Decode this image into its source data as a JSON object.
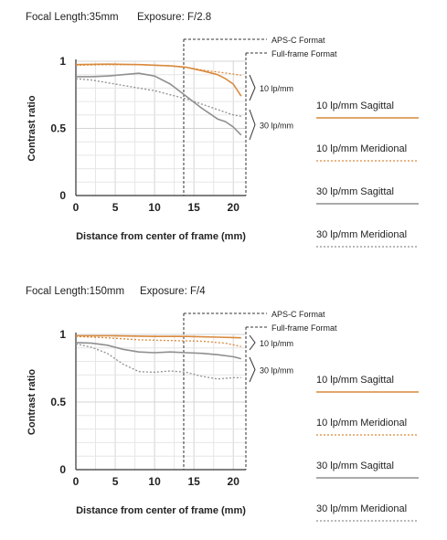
{
  "chart_data": [
    {
      "type": "line",
      "header": {
        "focal_length": "Focal Length:35mm",
        "exposure": "Exposure: F/2.8"
      },
      "xlabel": "Distance from center of frame (mm)",
      "ylabel": "Contrast ratio",
      "xlim": [
        0,
        21.6
      ],
      "ylim": [
        0,
        1
      ],
      "x_ticks": [
        "0",
        "5",
        "10",
        "15",
        "20"
      ],
      "y_ticks": [
        "0",
        "0.5",
        "1"
      ],
      "format_markers": [
        {
          "label": "APS-C Format",
          "x": 13.7
        },
        {
          "label": "Full-frame Format",
          "x": 21.6
        }
      ],
      "bracket_labels": [
        "10 lp/mm",
        "30 lp/mm"
      ],
      "series": [
        {
          "name": "10 lp/mm Sagittal",
          "color": "#d9893a",
          "style": "solid",
          "x": [
            0,
            4,
            8,
            12,
            14,
            16,
            18,
            19,
            20,
            21
          ],
          "y": [
            0.975,
            0.978,
            0.975,
            0.965,
            0.955,
            0.93,
            0.9,
            0.87,
            0.83,
            0.74
          ]
        },
        {
          "name": "10 lp/mm Meridional",
          "color": "#d9893a",
          "style": "dotted",
          "x": [
            0,
            4,
            8,
            12,
            14,
            16,
            18,
            20,
            21
          ],
          "y": [
            0.97,
            0.975,
            0.975,
            0.965,
            0.955,
            0.935,
            0.92,
            0.905,
            0.895
          ]
        },
        {
          "name": "30 lp/mm Sagittal",
          "color": "#8f8f8f",
          "style": "solid",
          "x": [
            0,
            2,
            4,
            6,
            8,
            10,
            12,
            14,
            16,
            17,
            18,
            19,
            20,
            21
          ],
          "y": [
            0.885,
            0.885,
            0.89,
            0.9,
            0.91,
            0.89,
            0.83,
            0.74,
            0.65,
            0.61,
            0.57,
            0.55,
            0.51,
            0.45
          ]
        },
        {
          "name": "30 lp/mm Meridional",
          "color": "#8f8f8f",
          "style": "dotted",
          "x": [
            0,
            2,
            4,
            6,
            8,
            10,
            12,
            14,
            16,
            18,
            20,
            21
          ],
          "y": [
            0.87,
            0.86,
            0.84,
            0.82,
            0.8,
            0.78,
            0.75,
            0.72,
            0.68,
            0.64,
            0.6,
            0.59
          ]
        }
      ]
    },
    {
      "type": "line",
      "header": {
        "focal_length": "Focal Length:150mm",
        "exposure": "Exposure: F/4"
      },
      "xlabel": "Distance from center of frame (mm)",
      "ylabel": "Contrast ratio",
      "xlim": [
        0,
        21.6
      ],
      "ylim": [
        0,
        1
      ],
      "x_ticks": [
        "0",
        "5",
        "10",
        "15",
        "20"
      ],
      "y_ticks": [
        "0",
        "0.5",
        "1"
      ],
      "format_markers": [
        {
          "label": "APS-C Format",
          "x": 13.7
        },
        {
          "label": "Full-frame Format",
          "x": 21.6
        }
      ],
      "bracket_labels": [
        "10 lp/mm",
        "30 lp/mm"
      ],
      "series": [
        {
          "name": "10 lp/mm Sagittal",
          "color": "#d9893a",
          "style": "solid",
          "x": [
            0,
            5,
            10,
            14,
            18,
            21
          ],
          "y": [
            0.99,
            0.99,
            0.985,
            0.985,
            0.98,
            0.975
          ]
        },
        {
          "name": "10 lp/mm Meridional",
          "color": "#d9893a",
          "style": "dotted",
          "x": [
            0,
            4,
            8,
            12,
            16,
            19,
            21
          ],
          "y": [
            0.985,
            0.975,
            0.96,
            0.955,
            0.95,
            0.935,
            0.91
          ]
        },
        {
          "name": "30 lp/mm Sagittal",
          "color": "#8f8f8f",
          "style": "solid",
          "x": [
            0,
            2,
            4,
            6,
            8,
            10,
            12,
            14,
            16,
            18,
            20,
            21
          ],
          "y": [
            0.94,
            0.935,
            0.92,
            0.89,
            0.87,
            0.865,
            0.87,
            0.865,
            0.86,
            0.85,
            0.835,
            0.82
          ]
        },
        {
          "name": "30 lp/mm Meridional",
          "color": "#8f8f8f",
          "style": "dotted",
          "x": [
            0,
            2,
            4,
            6,
            8,
            10,
            12,
            14,
            16,
            18,
            20,
            21
          ],
          "y": [
            0.93,
            0.905,
            0.86,
            0.78,
            0.725,
            0.72,
            0.73,
            0.72,
            0.69,
            0.67,
            0.68,
            0.68
          ]
        }
      ]
    }
  ]
}
